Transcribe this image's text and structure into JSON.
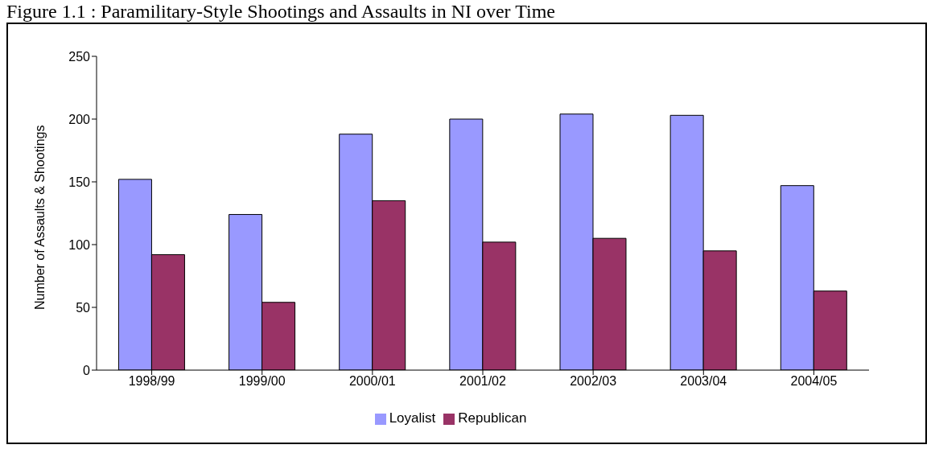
{
  "chart_data": {
    "type": "bar",
    "title": "Figure 1.1 : Paramilitary-Style Shootings and Assaults in NI over Time",
    "ylabel": "Number of Assaults & Shootings",
    "categories": [
      "1998/99",
      "1999/00",
      "2000/01",
      "2001/02",
      "2002/03",
      "2003/04",
      "2004/05"
    ],
    "series": [
      {
        "name": "Loyalist",
        "color": "#9999ff",
        "values": [
          152,
          124,
          188,
          200,
          204,
          203,
          147
        ]
      },
      {
        "name": "Republican",
        "color": "#993366",
        "values": [
          92,
          54,
          135,
          102,
          105,
          95,
          63
        ]
      }
    ],
    "ylim": [
      0,
      250
    ],
    "yticks": [
      0,
      50,
      100,
      150,
      200,
      250
    ],
    "grid": false,
    "legend": "bottom"
  }
}
